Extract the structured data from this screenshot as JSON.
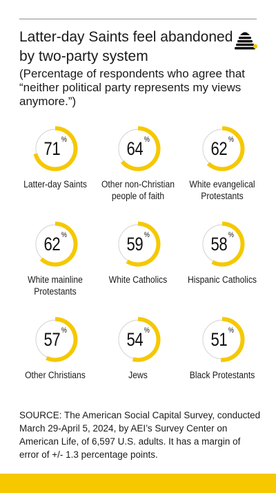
{
  "header": {
    "title": "Latter-day Saints feel abandoned by two-party system",
    "subtitle": "(Percentage of respondents who agree that “neither political party represents my views anymore.”)"
  },
  "colors": {
    "accent": "#f5c800",
    "track": "#d9d9d9",
    "text": "#1a1a1a"
  },
  "logo": {
    "icon": "beehive-icon"
  },
  "chart_data": {
    "type": "donut",
    "unit": "%",
    "max": 100,
    "items": [
      {
        "label": "Latter-day Saints",
        "value": 71
      },
      {
        "label": "Other non-Christian people of faith",
        "value": 64
      },
      {
        "label": "White evangelical Protestants",
        "value": 62
      },
      {
        "label": "White mainline Protestants",
        "value": 62
      },
      {
        "label": "White Catholics",
        "value": 59
      },
      {
        "label": "Hispanic Catholics",
        "value": 58
      },
      {
        "label": "Other Christians",
        "value": 57
      },
      {
        "label": "Jews",
        "value": 54
      },
      {
        "label": "Black Protestants",
        "value": 51
      }
    ]
  },
  "source": "SOURCE: The American Social Capital Survey, conducted March 29-April 5, 2024, by AEI’s Survey Center on American Life, of 6,597 U.S. adults. It has a margin of error of +/- 1.3 percentage points."
}
